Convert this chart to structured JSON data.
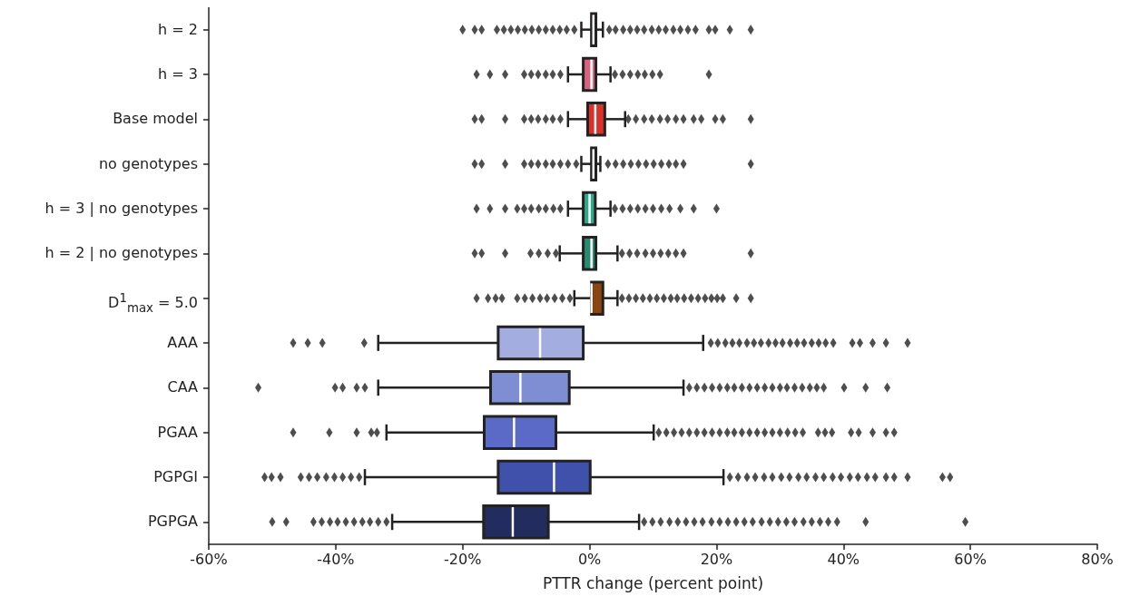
{
  "chart_data": {
    "type": "box",
    "orientation": "horizontal",
    "xlabel": "PTTR change (percent point)",
    "categories": [
      "h = 2",
      "h = 3",
      "Base model",
      "no genotypes",
      "h = 3 | no genotypes",
      "h = 2 | no genotypes",
      "D$^{1}$$_{max}$ = 5.0",
      "AAA",
      "CAA",
      "PGAA",
      "PGPGI",
      "PGPGA"
    ],
    "colors": [
      "#c0304f",
      "#d9637f",
      "#dc3128",
      "#1d4d3c",
      "#30a98a",
      "#2a8a6e",
      "#8b4513",
      "#a4addf",
      "#7f8dd2",
      "#5a6ac6",
      "#3f51ab",
      "#232c5e"
    ],
    "boxes": [
      {
        "low": -1.3,
        "q1": 0.3,
        "median": 0.6,
        "q3": 1.0,
        "high": 2.1,
        "outliers": [
          -20,
          -18.1,
          -17,
          -14.6,
          -13.5,
          -12.4,
          -11.3,
          -10.2,
          -9.1,
          -8,
          -6.9,
          -5.8,
          -4.7,
          -3.6,
          -2.4,
          3.1,
          4.1,
          5.3,
          6.4,
          7.5,
          8.6,
          9.8,
          10.9,
          12,
          13.2,
          14.3,
          15.5,
          16.7,
          18.8,
          19.8,
          22.1,
          25.4
        ]
      },
      {
        "low": -3.4,
        "q1": -1.0,
        "median": 0.3,
        "q3": 1.0,
        "high": 3.3,
        "outliers": [
          -17.8,
          -15.7,
          -13.3,
          -10.3,
          -9.2,
          -8.1,
          -6.9,
          -5.8,
          -4.6,
          4,
          5.2,
          6.4,
          7.6,
          8.7,
          9.9,
          11.1,
          18.8
        ]
      },
      {
        "low": -3.4,
        "q1": -0.3,
        "median": 0.9,
        "q3": 2.4,
        "high": 5.6,
        "outliers": [
          -18.1,
          -17,
          -13.3,
          -10.3,
          -9.2,
          -8.1,
          -6.9,
          -5.8,
          -4.6,
          6.1,
          7.3,
          8.6,
          9.8,
          11.1,
          12.3,
          13.6,
          14.8,
          16.4,
          17.6,
          19.8,
          21,
          25.4
        ]
      },
      {
        "low": -1.3,
        "q1": 0.3,
        "median": 0.6,
        "q3": 1.0,
        "high": 1.7,
        "outliers": [
          -18.1,
          -17,
          -13.3,
          -10.3,
          -9.2,
          -8.1,
          -6.9,
          -5.8,
          -4.6,
          -3.4,
          -2.1,
          2.9,
          4.1,
          5.3,
          6.5,
          7.7,
          8.9,
          10.1,
          11.3,
          12.5,
          13.6,
          14.8,
          25.4
        ]
      },
      {
        "low": -3.4,
        "q1": -1.0,
        "median": 0.0,
        "q3": 0.9,
        "high": 3.3,
        "outliers": [
          -17.8,
          -15.7,
          -13.3,
          -11.4,
          -10.3,
          -9.2,
          -8,
          -6.9,
          -5.7,
          -4.6,
          4,
          5.2,
          6.4,
          7.6,
          8.8,
          10,
          11.3,
          12.6,
          14.3,
          16.4,
          20
        ]
      },
      {
        "low": -4.7,
        "q1": -1.0,
        "median": 0.3,
        "q3": 1.0,
        "high": 4.4,
        "outliers": [
          -18.1,
          -17,
          -13.3,
          -9.3,
          -8,
          -6.6,
          -5.3,
          5.1,
          6.3,
          7.5,
          8.8,
          10,
          11.2,
          12.4,
          13.6,
          14.8,
          25.4
        ]
      },
      {
        "low": -2.4,
        "q1": 0.3,
        "median": 0.3,
        "q3": 2.1,
        "high": 4.4,
        "outliers": [
          -17.8,
          -16,
          -14.8,
          -13.8,
          -11.4,
          -10.2,
          -9,
          -7.8,
          -6.7,
          -5.5,
          -4.3,
          -3.1,
          5.1,
          6.2,
          7.3,
          8.4,
          9.5,
          10.6,
          11.7,
          12.8,
          13.8,
          14.9,
          16,
          17.1,
          18.2,
          19.2,
          20.1,
          21,
          23.1,
          25.4
        ]
      },
      {
        "low": -33.3,
        "q1": -14.4,
        "median": -7.8,
        "q3": -1.0,
        "high": 17.9,
        "outliers": [
          -46.7,
          -44.4,
          -42.1,
          -35.5,
          19.1,
          20.2,
          21.4,
          22.5,
          23.6,
          24.8,
          25.9,
          27,
          28.2,
          29.3,
          30.4,
          31.6,
          32.7,
          33.8,
          35,
          36.1,
          37.2,
          38.4,
          41.4,
          42.6,
          44.6,
          46.7,
          50.1
        ]
      },
      {
        "low": -33.3,
        "q1": -15.6,
        "median": -10.9,
        "q3": -3.2,
        "high": 14.8,
        "outliers": [
          -52.2,
          -40.1,
          -38.9,
          -36.7,
          -35.4,
          15.7,
          16.9,
          18.1,
          19.3,
          20.5,
          21.7,
          22.8,
          24,
          25.2,
          26.4,
          27.6,
          28.8,
          30,
          31.1,
          32.3,
          33.5,
          34.7,
          35.8,
          36.9,
          40.1,
          43.5,
          46.9
        ]
      },
      {
        "low": -32,
        "q1": -16.6,
        "median": -11.9,
        "q3": -5.3,
        "high": 10.1,
        "outliers": [
          -46.7,
          -41,
          -36.7,
          -34.4,
          -33.5,
          10.9,
          12.1,
          13.3,
          14.5,
          15.7,
          16.9,
          18.1,
          19.3,
          20.5,
          21.7,
          22.8,
          24,
          25.2,
          26.4,
          27.6,
          28.8,
          30,
          31.2,
          32.4,
          33.6,
          36,
          37.1,
          38.2,
          41.2,
          42.4,
          44.6,
          46.7,
          48
        ]
      },
      {
        "low": -35.4,
        "q1": -14.4,
        "median": -5.6,
        "q3": 0.1,
        "high": 21.1,
        "outliers": [
          -51.2,
          -50.1,
          -48.7,
          -45.5,
          -44.2,
          -42.9,
          -41.5,
          -40.2,
          -38.9,
          -37.6,
          -36.3,
          22.1,
          23.4,
          24.8,
          26.1,
          27.5,
          28.8,
          30.2,
          31.5,
          32.9,
          34.2,
          35.6,
          36.9,
          38.3,
          39.6,
          41,
          42.3,
          43.7,
          45,
          46.7,
          48,
          50.1,
          55.6,
          56.8
        ]
      },
      {
        "low": -31.1,
        "q1": -16.7,
        "median": -12.1,
        "q3": -6.5,
        "high": 7.8,
        "outliers": [
          -50,
          -47.8,
          -43.5,
          -42.2,
          -40.9,
          -39.7,
          -38.4,
          -37.1,
          -35.8,
          -34.6,
          -33.3,
          -32,
          8.6,
          9.9,
          11.2,
          12.6,
          13.9,
          15.2,
          16.5,
          17.8,
          19.2,
          20.5,
          21.8,
          23.1,
          24.4,
          25.7,
          27.1,
          28.4,
          29.7,
          31,
          32.3,
          33.7,
          35,
          36.3,
          37.6,
          39,
          43.5,
          59.2
        ]
      }
    ],
    "xlim": [
      -60,
      80
    ],
    "xticks": [
      {
        "value": -60,
        "label": "-60%"
      },
      {
        "value": -40,
        "label": "-40%"
      },
      {
        "value": -20,
        "label": "-20%"
      },
      {
        "value": 0,
        "label": "0%"
      },
      {
        "value": 20,
        "label": "20%"
      },
      {
        "value": 40,
        "label": "40%"
      },
      {
        "value": 60,
        "label": "60%"
      },
      {
        "value": 80,
        "label": "80%"
      }
    ],
    "marker": "diamond",
    "grid": false
  }
}
